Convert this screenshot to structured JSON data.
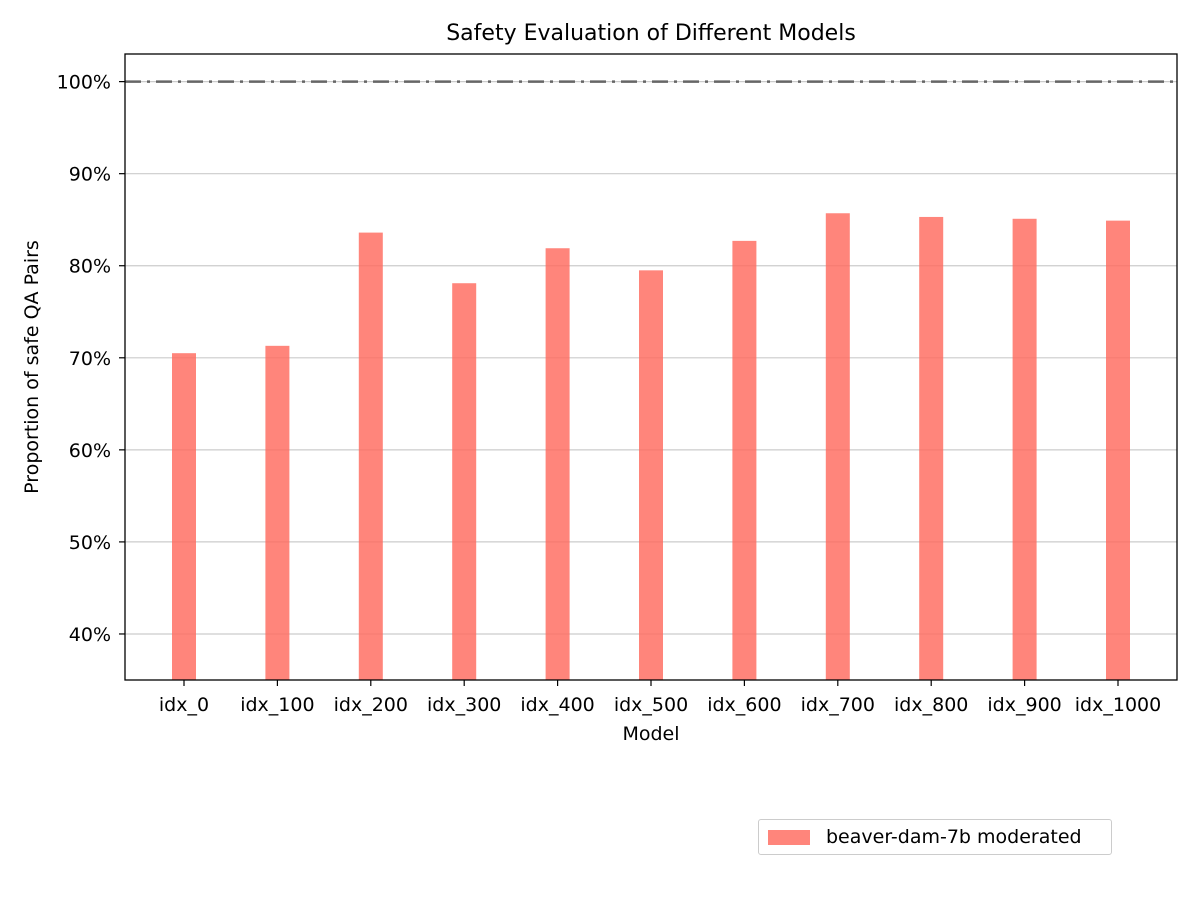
{
  "chart_data": {
    "type": "bar",
    "title": "Safety Evaluation of Different Models",
    "xlabel": "Model",
    "ylabel": "Proportion of safe QA Pairs",
    "categories": [
      "idx_0",
      "idx_100",
      "idx_200",
      "idx_300",
      "idx_400",
      "idx_500",
      "idx_600",
      "idx_700",
      "idx_800",
      "idx_900",
      "idx_1000"
    ],
    "series": [
      {
        "name": "beaver-dam-7b moderated",
        "color": "#ff6a5e",
        "values": [
          70.5,
          71.3,
          83.6,
          78.1,
          81.9,
          79.5,
          82.7,
          85.7,
          85.3,
          85.1,
          84.9
        ]
      }
    ],
    "ylim": [
      35,
      103
    ],
    "yticks": [
      40,
      50,
      60,
      70,
      80,
      90,
      100
    ],
    "ytick_labels": [
      "40%",
      "50%",
      "60%",
      "70%",
      "80%",
      "90%",
      "100%"
    ],
    "reference_line": {
      "value": 100,
      "style": "dash-dot",
      "color": "#666666"
    },
    "grid": "horizontal",
    "legend_position": "bottom-right"
  }
}
